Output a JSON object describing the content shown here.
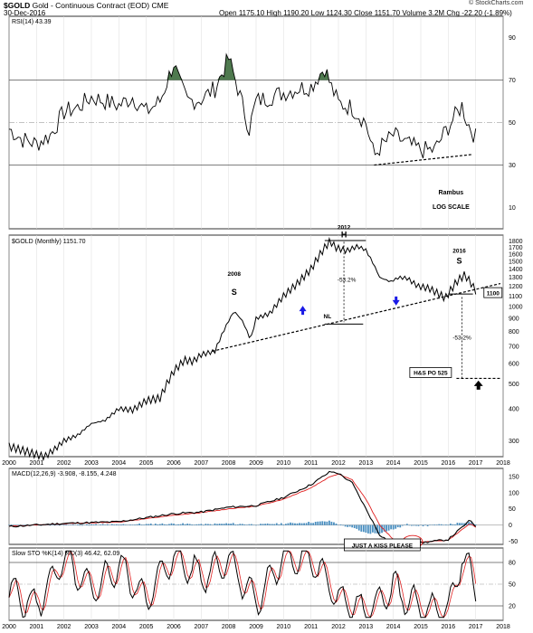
{
  "header": {
    "symbol": "$GOLD",
    "name": "Gold - Continuous Contract (EOD)",
    "exchange": "CME",
    "date": "30-Dec-2016",
    "watermark": "© StockCharts.com",
    "quote": {
      "open_label": "Open",
      "open": "1175.10",
      "high_label": "High",
      "high": "1190.20",
      "low_label": "Low",
      "low": "1124.30",
      "close_label": "Close",
      "close": "1151.70",
      "volume_label": "Volume",
      "volume": "3.2M",
      "chg_label": "Chg",
      "chg": "-22.20 (-1.89%)"
    }
  },
  "colors": {
    "price": "#000000",
    "rsi_shade": "#4f7a4f",
    "signal": "#e02020",
    "histogram": "#4a8fc0",
    "arrow_blue": "#1a1ae6",
    "grid": "#dddddd"
  },
  "chart_data": [
    {
      "type": "line",
      "panel": "rsi",
      "legend": "RSI(14) 43.39",
      "ylim": [
        0,
        100
      ],
      "yticks": [
        10,
        30,
        50,
        70,
        90
      ],
      "reference_lines": [
        30,
        50,
        70
      ],
      "x": [
        2000.0,
        2000.5,
        2001.0,
        2001.5,
        2002.0,
        2002.5,
        2003.0,
        2003.5,
        2004.0,
        2004.5,
        2005.0,
        2005.5,
        2006.0,
        2006.25,
        2006.5,
        2007.0,
        2007.5,
        2008.0,
        2008.25,
        2008.75,
        2009.0,
        2009.5,
        2010.0,
        2010.5,
        2011.0,
        2011.5,
        2011.7,
        2012.0,
        2012.5,
        2013.0,
        2013.3,
        2013.5,
        2014.0,
        2014.5,
        2015.0,
        2015.5,
        2016.0,
        2016.5,
        2016.7,
        2017.0
      ],
      "values": [
        47,
        42,
        40,
        44,
        55,
        57,
        62,
        60,
        58,
        62,
        55,
        60,
        78,
        67,
        60,
        61,
        66,
        80,
        70,
        47,
        60,
        62,
        64,
        66,
        67,
        76,
        68,
        59,
        57,
        50,
        34,
        38,
        44,
        40,
        37,
        37,
        48,
        58,
        50,
        43
      ],
      "annotations": [
        "Rambus",
        "LOG SCALE"
      ]
    },
    {
      "type": "line",
      "panel": "price",
      "legend": "$GOLD (Monthly) 1151.70",
      "yscale": "log",
      "ylim": [
        260,
        1900
      ],
      "yticks": [
        300,
        400,
        500,
        600,
        700,
        800,
        900,
        1000,
        1100,
        1200,
        1300,
        1400,
        1500,
        1600,
        1700,
        1800
      ],
      "xticks": [
        2000,
        2001,
        2002,
        2003,
        2004,
        2005,
        2006,
        2007,
        2008,
        2009,
        2010,
        2011,
        2012,
        2013,
        2014,
        2015,
        2016,
        2017,
        2018
      ],
      "x": [
        2000.0,
        2000.5,
        2001.0,
        2001.3,
        2001.7,
        2002.0,
        2002.5,
        2003.0,
        2003.5,
        2004.0,
        2004.5,
        2005.0,
        2005.5,
        2006.0,
        2006.4,
        2006.7,
        2007.0,
        2007.5,
        2008.0,
        2008.2,
        2008.5,
        2008.8,
        2009.0,
        2009.5,
        2010.0,
        2010.5,
        2011.0,
        2011.5,
        2011.7,
        2011.9,
        2012.3,
        2012.7,
        2013.0,
        2013.3,
        2013.5,
        2013.9,
        2014.2,
        2014.5,
        2014.9,
        2015.3,
        2015.9,
        2016.3,
        2016.6,
        2016.8,
        2017.0
      ],
      "values": [
        285,
        275,
        265,
        260,
        280,
        300,
        315,
        350,
        360,
        400,
        395,
        430,
        440,
        560,
        620,
        610,
        650,
        670,
        880,
        960,
        880,
        740,
        900,
        940,
        1100,
        1230,
        1400,
        1700,
        1800,
        1700,
        1650,
        1720,
        1660,
        1450,
        1300,
        1250,
        1300,
        1290,
        1200,
        1180,
        1080,
        1250,
        1330,
        1250,
        1152
      ],
      "annotations": [
        "2008",
        "S",
        "2012",
        "H",
        "-53.2%",
        "NL",
        "2016",
        "S",
        "-53.2%",
        "1100",
        "H&S PO 525"
      ]
    },
    {
      "type": "line",
      "panel": "macd",
      "legend": "MACD(12,26,9) -3.908, -8.155, 4.248",
      "ylim": [
        -60,
        175
      ],
      "yticks": [
        -50,
        0,
        50,
        100,
        150
      ],
      "x": [
        2000.0,
        2002.0,
        2004.0,
        2006.0,
        2007.0,
        2008.0,
        2009.0,
        2010.0,
        2011.0,
        2011.7,
        2012.0,
        2012.5,
        2013.0,
        2013.5,
        2014.0,
        2014.5,
        2015.0,
        2016.0,
        2016.8,
        2017.0
      ],
      "series": [
        {
          "name": "",
          "values": [
            -5,
            5,
            10,
            35,
            40,
            55,
            60,
            85,
            125,
            165,
            160,
            130,
            50,
            -30,
            -60,
            -50,
            -55,
            -45,
            15,
            -4
          ]
        },
        {
          "name": "",
          "values": [
            -4,
            4,
            9,
            30,
            38,
            50,
            58,
            80,
            115,
            150,
            158,
            140,
            80,
            0,
            -45,
            -52,
            -53,
            -47,
            5,
            -8
          ]
        }
      ],
      "annotations": [
        "JUST A KISS PLEASE"
      ]
    },
    {
      "type": "line",
      "panel": "sto",
      "legend": "Slow STO %K(14) %D(3) 46.42, 62.09",
      "ylim": [
        0,
        100
      ],
      "yticks": [
        20,
        50,
        80
      ],
      "x": [
        2000.0,
        2001.0,
        2002.0,
        2003.0,
        2004.0,
        2005.0,
        2006.0,
        2007.0,
        2008.0,
        2009.0,
        2010.0,
        2011.0,
        2012.0,
        2013.0,
        2014.0,
        2015.0,
        2016.0,
        2016.5,
        2017.0
      ],
      "series": [
        {
          "name": "",
          "values": [
            40,
            20,
            85,
            40,
            75,
            30,
            90,
            60,
            85,
            25,
            88,
            85,
            30,
            10,
            45,
            15,
            10,
            90,
            46
          ]
        },
        {
          "name": "",
          "values": [
            45,
            25,
            80,
            45,
            70,
            35,
            85,
            62,
            80,
            30,
            85,
            83,
            35,
            12,
            42,
            18,
            12,
            85,
            62
          ]
        }
      ]
    }
  ]
}
